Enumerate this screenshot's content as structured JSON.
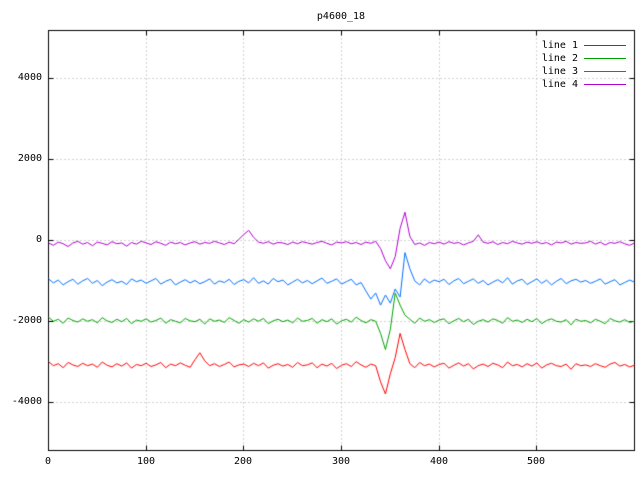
{
  "chart_data": {
    "type": "line",
    "title": "p4600_18",
    "xlabel": "",
    "ylabel": "",
    "xlim": [
      0,
      600
    ],
    "ylim": [
      -5200,
      5200
    ],
    "x_ticks": [
      0,
      100,
      200,
      300,
      400,
      500
    ],
    "y_ticks": [
      -4000,
      -2000,
      0,
      2000,
      4000
    ],
    "grid": true,
    "grid_style": "dotted",
    "legend_position": "top-right-inside",
    "background": "#ffffff",
    "x_start": 0,
    "x_step": 5,
    "series": [
      {
        "name": "line 1",
        "color": "#ff0000",
        "values": [
          -3000,
          -3100,
          -3050,
          -3150,
          -3020,
          -3080,
          -3120,
          -3040,
          -3100,
          -3060,
          -3140,
          -3010,
          -3090,
          -3130,
          -3050,
          -3110,
          -3030,
          -3160,
          -3070,
          -3100,
          -3040,
          -3120,
          -3080,
          -3020,
          -3150,
          -3060,
          -3100,
          -3030,
          -3090,
          -3140,
          -2950,
          -2780,
          -2980,
          -3100,
          -3050,
          -3120,
          -3070,
          -3010,
          -3130,
          -3080,
          -3060,
          -3120,
          -3040,
          -3100,
          -3030,
          -3160,
          -3090,
          -3050,
          -3110,
          -3070,
          -3140,
          -3020,
          -3100,
          -3080,
          -3030,
          -3150,
          -3060,
          -3110,
          -3040,
          -3170,
          -3090,
          -3050,
          -3120,
          -3000,
          -3080,
          -3140,
          -3060,
          -3100,
          -3500,
          -3800,
          -3300,
          -2900,
          -2300,
          -2700,
          -3050,
          -3150,
          -3020,
          -3100,
          -3060,
          -3130,
          -3070,
          -3040,
          -3160,
          -3090,
          -3030,
          -3110,
          -3050,
          -3180,
          -3100,
          -3060,
          -3120,
          -3040,
          -3080,
          -3150,
          -3010,
          -3100,
          -3070,
          -3130,
          -3050,
          -3110,
          -3030,
          -3160,
          -3080,
          -3040,
          -3100,
          -3120,
          -3060,
          -3190,
          -3050,
          -3100,
          -3080,
          -3120,
          -3050,
          -3100,
          -3140,
          -3060,
          -3020,
          -3110,
          -3070,
          -3130,
          -3090
        ]
      },
      {
        "name": "line 2",
        "color": "#00a000",
        "values": [
          -1900,
          -2000,
          -1950,
          -2050,
          -1920,
          -1980,
          -2020,
          -1940,
          -2000,
          -1960,
          -2040,
          -1910,
          -1990,
          -2030,
          -1950,
          -2010,
          -1930,
          -2060,
          -1970,
          -2000,
          -1940,
          -2020,
          -1980,
          -1920,
          -2050,
          -1960,
          -2000,
          -2040,
          -1930,
          -1990,
          -2010,
          -1950,
          -2070,
          -1940,
          -2000,
          -1970,
          -2030,
          -1910,
          -1980,
          -2050,
          -1960,
          -2020,
          -1940,
          -2000,
          -1930,
          -2060,
          -1990,
          -1950,
          -2010,
          -1970,
          -2040,
          -1920,
          -2000,
          -1980,
          -1930,
          -2050,
          -1960,
          -2010,
          -1940,
          -2070,
          -1990,
          -1950,
          -2020,
          -1900,
          -1980,
          -2040,
          -1960,
          -2000,
          -2300,
          -2700,
          -2200,
          -1300,
          -1600,
          -1850,
          -1950,
          -2050,
          -1920,
          -2000,
          -1960,
          -2030,
          -1970,
          -1940,
          -2060,
          -1990,
          -1930,
          -2010,
          -1950,
          -2080,
          -2000,
          -1960,
          -2020,
          -1940,
          -1980,
          -2050,
          -1910,
          -2000,
          -1970,
          -2030,
          -1950,
          -2010,
          -1930,
          -2060,
          -1980,
          -1940,
          -2000,
          -2020,
          -1960,
          -2090,
          -1950,
          -2000,
          -1980,
          -2040,
          -1950,
          -2000,
          -2060,
          -1930,
          -1990,
          -2020,
          -1960,
          -2030,
          -2000
        ]
      },
      {
        "name": "line 3",
        "color": "#0070ff",
        "values": [
          -950,
          -1050,
          -980,
          -1100,
          -1020,
          -960,
          -1080,
          -1000,
          -940,
          -1060,
          -990,
          -1120,
          -1030,
          -970,
          -1050,
          -1010,
          -1090,
          -950,
          -1020,
          -980,
          -1060,
          -1000,
          -940,
          -1080,
          -1010,
          -960,
          -1100,
          -1030,
          -970,
          -1050,
          -990,
          -1070,
          -1020,
          -950,
          -1080,
          -1000,
          -1040,
          -960,
          -1090,
          -1010,
          -970,
          -1050,
          -920,
          -1060,
          -1000,
          -1080,
          -940,
          -1020,
          -980,
          -1100,
          -1030,
          -960,
          -1050,
          -990,
          -1070,
          -1000,
          -930,
          -1060,
          -1010,
          -950,
          -1080,
          -1020,
          -960,
          -1100,
          -1040,
          -1250,
          -1450,
          -1300,
          -1600,
          -1350,
          -1550,
          -1200,
          -1400,
          -300,
          -700,
          -1000,
          -1100,
          -950,
          -1050,
          -980,
          -1020,
          -960,
          -1090,
          -1000,
          -940,
          -1070,
          -1010,
          -950,
          -1060,
          -990,
          -1100,
          -1030,
          -970,
          -1050,
          -920,
          -1080,
          -1000,
          -960,
          -1090,
          -1020,
          -950,
          -1060,
          -980,
          -1100,
          -1010,
          -940,
          -1070,
          -1000,
          -960,
          -1030,
          -990,
          -1060,
          -1010,
          -950,
          -1080,
          -1020,
          -970,
          -1100,
          -1040,
          -980,
          -1030
        ]
      },
      {
        "name": "line 4",
        "color": "#b000d0",
        "values": [
          -60,
          -120,
          -40,
          -80,
          -150,
          -60,
          -20,
          -90,
          -50,
          -130,
          -40,
          -70,
          -110,
          -30,
          -80,
          -60,
          -140,
          -50,
          -90,
          -20,
          -60,
          -100,
          -30,
          -70,
          -120,
          -40,
          -80,
          -50,
          -110,
          -60,
          -30,
          -90,
          -50,
          -70,
          -20,
          -60,
          -100,
          -40,
          -80,
          30,
          150,
          250,
          80,
          -40,
          -70,
          -30,
          -90,
          -50,
          -60,
          -100,
          -40,
          -80,
          -30,
          -60,
          -90,
          -50,
          -20,
          -70,
          -110,
          -40,
          -60,
          -30,
          -80,
          -50,
          -100,
          -40,
          -70,
          -20,
          -200,
          -500,
          -700,
          -400,
          300,
          700,
          100,
          -100,
          -60,
          -120,
          -50,
          -80,
          -40,
          -90,
          -30,
          -70,
          -50,
          -110,
          -60,
          -20,
          140,
          -40,
          -70,
          -30,
          -100,
          -50,
          -80,
          -20,
          -60,
          -90,
          -40,
          -70,
          -30,
          -80,
          -50,
          -110,
          -40,
          -60,
          -20,
          -90,
          -50,
          -70,
          -60,
          -20,
          -90,
          -40,
          -110,
          -50,
          -70,
          -30,
          -80,
          -120,
          -60
        ]
      }
    ]
  }
}
